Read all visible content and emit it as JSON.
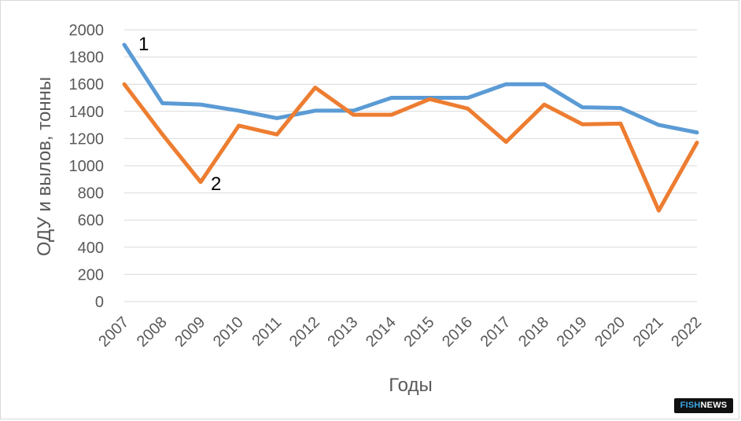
{
  "chart_data": {
    "type": "line",
    "xlabel": "Годы",
    "ylabel": "ОДУ и вылов, тонны",
    "ylim": [
      0,
      2000
    ],
    "y_ticks": [
      0,
      200,
      400,
      600,
      800,
      1000,
      1200,
      1400,
      1600,
      1800,
      2000
    ],
    "grid": true,
    "legend": "none",
    "categories": [
      "2007",
      "2008",
      "2009",
      "2010",
      "2011",
      "2012",
      "2013",
      "2014",
      "2015",
      "2016",
      "2017",
      "2018",
      "2019",
      "2020",
      "2021",
      "2022"
    ],
    "series": [
      {
        "name": "1",
        "color": "#5b9bd5",
        "values": [
          1890,
          1460,
          1450,
          1405,
          1350,
          1405,
          1405,
          1500,
          1500,
          1500,
          1600,
          1600,
          1430,
          1425,
          1300,
          1245
        ]
      },
      {
        "name": "2",
        "color": "#ed7d31",
        "values": [
          1600,
          1230,
          880,
          1295,
          1230,
          1575,
          1375,
          1375,
          1490,
          1420,
          1175,
          1450,
          1305,
          1310,
          670,
          1170
        ]
      }
    ]
  },
  "watermark": {
    "part1": "FISH",
    "part2": "NEWS"
  },
  "colors": {
    "grid": "#d9d9d9",
    "text": "#595959"
  }
}
